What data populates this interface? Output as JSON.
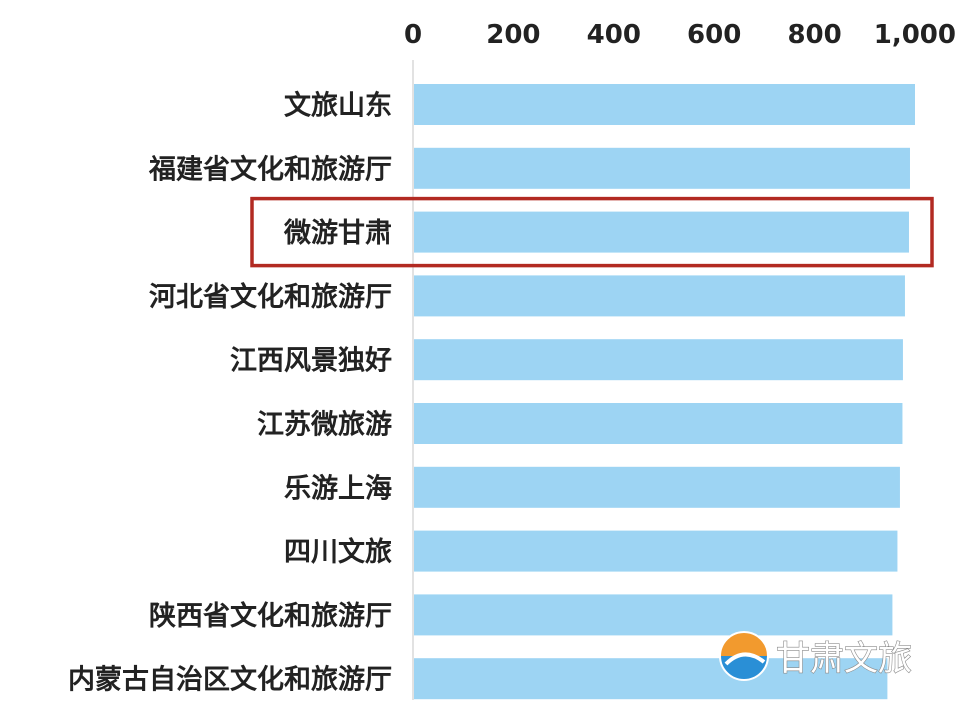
{
  "chart_data": {
    "type": "bar",
    "orientation": "horizontal",
    "categories": [
      "文旅山东",
      "福建省文化和旅游厅",
      "微游甘肃",
      "河北省文化和旅游厅",
      "江西风景独好",
      "江苏微旅游",
      "乐游上海",
      "四川文旅",
      "陕西省文化和旅游厅",
      "内蒙古自治区文化和旅游厅"
    ],
    "values": [
      1000,
      990,
      988,
      980,
      976,
      975,
      970,
      965,
      955,
      945
    ],
    "xlim": [
      0,
      1000
    ],
    "ticks": [
      0,
      200,
      400,
      600,
      800,
      1000
    ],
    "tick_labels": [
      "0",
      "200",
      "400",
      "600",
      "800",
      "1,000"
    ],
    "axis_position": "top",
    "grid": false,
    "highlighted_category": "微游甘肃",
    "bar_color": "#9dd4f3",
    "highlight_box_color": "#b22a22"
  },
  "watermark": {
    "text": "甘肃文旅",
    "icon": "gansu-wenlv-logo-icon"
  }
}
